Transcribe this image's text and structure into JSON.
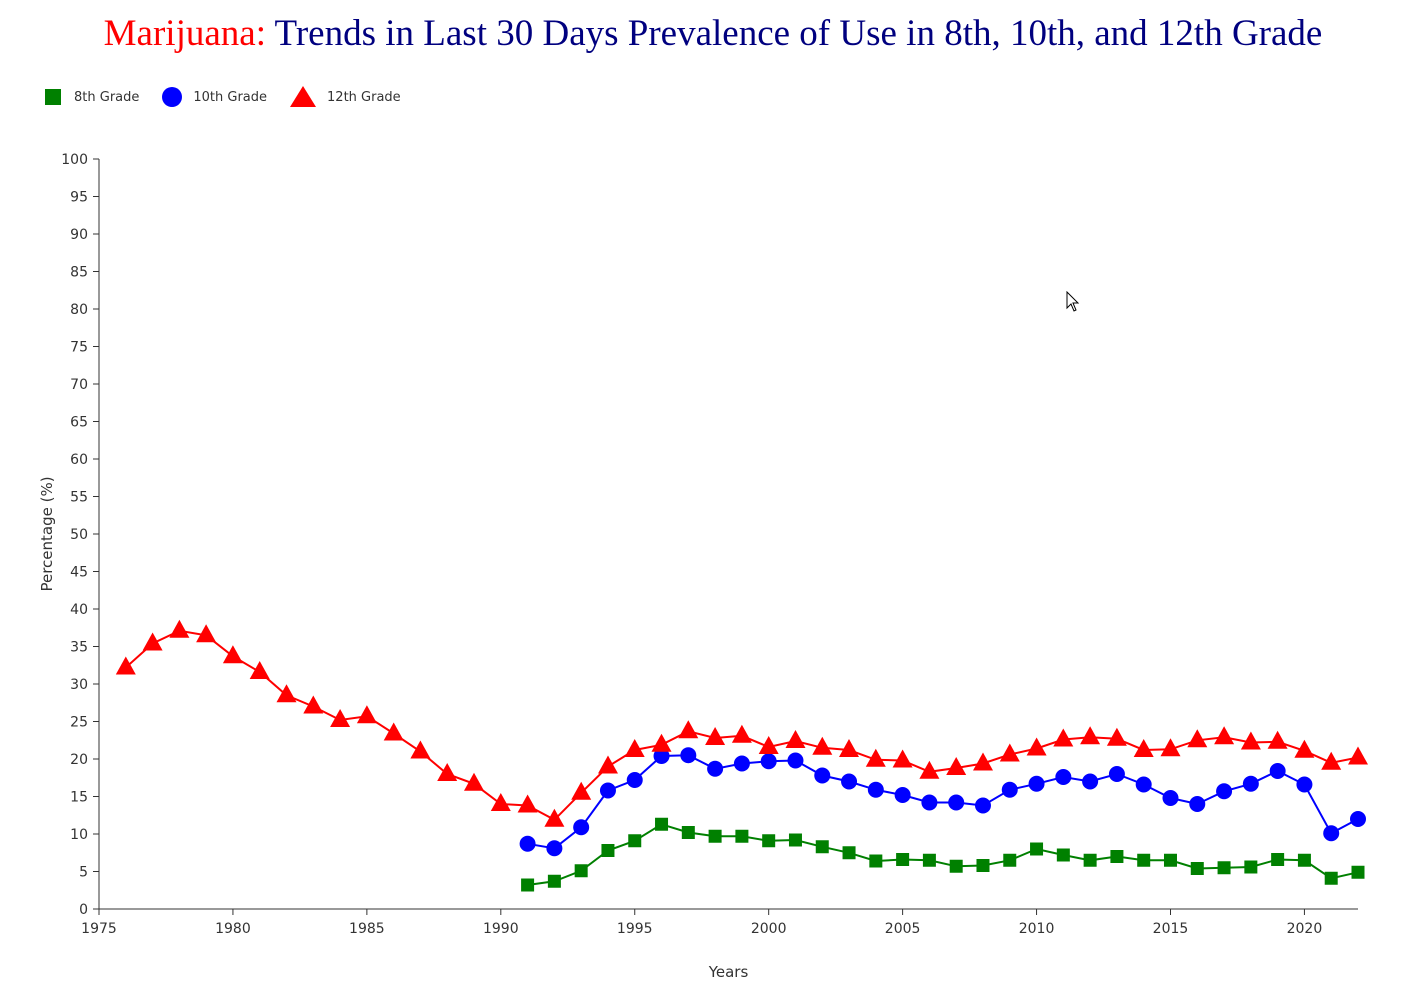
{
  "title": {
    "accent": "Marijuana:",
    "main": " Trends in Last 30 Days Prevalence of Use in 8th, 10th, and 12th Grade"
  },
  "colors": {
    "accent": "#ff0000",
    "title": "#00007f",
    "axis": "#333333"
  },
  "legend": [
    {
      "label": "8th Grade",
      "marker": "square",
      "color": "#008000"
    },
    {
      "label": "10th Grade",
      "marker": "circle",
      "color": "#0000ff"
    },
    {
      "label": "12th Grade",
      "marker": "triangle",
      "color": "#ff0000"
    }
  ],
  "chart_data": {
    "type": "line",
    "title": "Marijuana: Trends in Last 30 Days Prevalence of Use in 8th, 10th, and 12th Grade",
    "xlabel": "Years",
    "ylabel": "Percentage (%)",
    "xlim": [
      1975,
      2022
    ],
    "ylim": [
      0,
      100
    ],
    "xticks": [
      1975,
      1980,
      1985,
      1990,
      1995,
      2000,
      2005,
      2010,
      2015,
      2020
    ],
    "yticks": [
      0,
      5,
      10,
      15,
      20,
      25,
      30,
      35,
      40,
      45,
      50,
      55,
      60,
      65,
      70,
      75,
      80,
      85,
      90,
      95,
      100
    ],
    "grid": false,
    "legend_position": "top-left",
    "series": [
      {
        "name": "8th Grade",
        "marker": "square",
        "color": "#008000",
        "x": [
          1991,
          1992,
          1993,
          1994,
          1995,
          1996,
          1997,
          1998,
          1999,
          2000,
          2001,
          2002,
          2003,
          2004,
          2005,
          2006,
          2007,
          2008,
          2009,
          2010,
          2011,
          2012,
          2013,
          2014,
          2015,
          2016,
          2017,
          2018,
          2019,
          2020,
          2021,
          2022
        ],
        "values": [
          3.2,
          3.7,
          5.1,
          7.8,
          9.1,
          11.3,
          10.2,
          9.7,
          9.7,
          9.1,
          9.2,
          8.3,
          7.5,
          6.4,
          6.6,
          6.5,
          5.7,
          5.8,
          6.5,
          8.0,
          7.2,
          6.5,
          7.0,
          6.5,
          6.5,
          5.4,
          5.5,
          5.6,
          6.6,
          6.5,
          4.1,
          4.9
        ]
      },
      {
        "name": "10th Grade",
        "marker": "circle",
        "color": "#0000ff",
        "x": [
          1991,
          1992,
          1993,
          1994,
          1995,
          1996,
          1997,
          1998,
          1999,
          2000,
          2001,
          2002,
          2003,
          2004,
          2005,
          2006,
          2007,
          2008,
          2009,
          2010,
          2011,
          2012,
          2013,
          2014,
          2015,
          2016,
          2017,
          2018,
          2019,
          2020,
          2021,
          2022
        ],
        "values": [
          8.7,
          8.1,
          10.9,
          15.8,
          17.2,
          20.4,
          20.5,
          18.7,
          19.4,
          19.7,
          19.8,
          17.8,
          17.0,
          15.9,
          15.2,
          14.2,
          14.2,
          13.8,
          15.9,
          16.7,
          17.6,
          17.0,
          18.0,
          16.6,
          14.8,
          14.0,
          15.7,
          16.7,
          18.4,
          16.6,
          10.1,
          12.0
        ]
      },
      {
        "name": "12th Grade",
        "marker": "triangle",
        "color": "#ff0000",
        "x": [
          1976,
          1977,
          1978,
          1979,
          1980,
          1981,
          1982,
          1983,
          1984,
          1985,
          1986,
          1987,
          1988,
          1989,
          1990,
          1991,
          1992,
          1993,
          1994,
          1995,
          1996,
          1997,
          1998,
          1999,
          2000,
          2001,
          2002,
          2003,
          2004,
          2005,
          2006,
          2007,
          2008,
          2009,
          2010,
          2011,
          2012,
          2013,
          2014,
          2015,
          2016,
          2017,
          2018,
          2019,
          2020,
          2021,
          2022
        ],
        "values": [
          32.2,
          35.4,
          37.1,
          36.5,
          33.7,
          31.6,
          28.5,
          27.0,
          25.2,
          25.7,
          23.4,
          21.0,
          18.0,
          16.7,
          14.0,
          13.8,
          11.9,
          15.5,
          19.0,
          21.2,
          21.9,
          23.7,
          22.8,
          23.1,
          21.6,
          22.4,
          21.5,
          21.2,
          19.9,
          19.8,
          18.3,
          18.8,
          19.4,
          20.6,
          21.4,
          22.6,
          22.9,
          22.7,
          21.2,
          21.3,
          22.5,
          22.9,
          22.2,
          22.3,
          21.1,
          19.5,
          20.2
        ]
      }
    ]
  }
}
